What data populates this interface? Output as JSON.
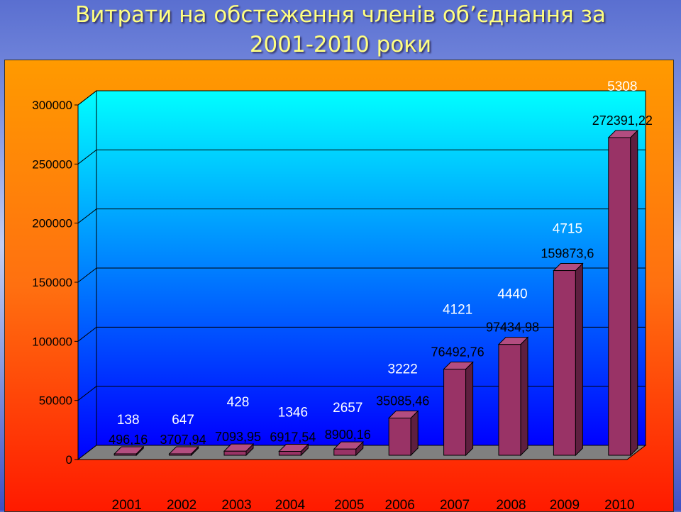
{
  "slide": {
    "title": "Витрати на обстеження членів об’єднання за\n2001-2010 роки"
  },
  "colors": {
    "bar_front": "#993366",
    "bar_side": "#5e1f3f",
    "bar_top": "#b34d80",
    "panel_top": "#ff9a00",
    "panel_bottom": "#ff1a00",
    "plot_top": "#00ffff",
    "plot_bottom": "#0000ff",
    "title": "#ffff80"
  },
  "chart_data": {
    "type": "bar",
    "title": "",
    "xlabel": "",
    "ylabel": "",
    "categories": [
      "2001",
      "2002",
      "2003",
      "2004",
      "2005",
      "2006",
      "2007",
      "2008",
      "2009",
      "2010"
    ],
    "series": [
      {
        "values": [
          496.16,
          3707.94,
          7093.95,
          6917.54,
          8900.16,
          35085.46,
          76492.76,
          97434.98,
          159873.6,
          272391.22
        ],
        "labels": [
          "496,16",
          "3707,94",
          "7093,95",
          "6917,54",
          "8900,16",
          "35085,46",
          "76492,76",
          "97434,98",
          "159873,6",
          "272391,22"
        ]
      }
    ],
    "annotations": {
      "values": [
        138,
        647,
        428,
        1346,
        2657,
        3222,
        4121,
        4440,
        4715,
        5308
      ],
      "labels": [
        "138",
        "647",
        "428",
        "1346",
        "2657",
        "3222",
        "4121",
        "4440",
        "4715",
        "5308"
      ]
    },
    "ylim": [
      0,
      300000
    ],
    "yticks": [
      0,
      50000,
      100000,
      150000,
      200000,
      250000,
      300000
    ],
    "ytick_labels": [
      "0",
      "50000",
      "100000",
      "150000",
      "200000",
      "250000",
      "300000"
    ],
    "grid": true,
    "legend": "none"
  }
}
